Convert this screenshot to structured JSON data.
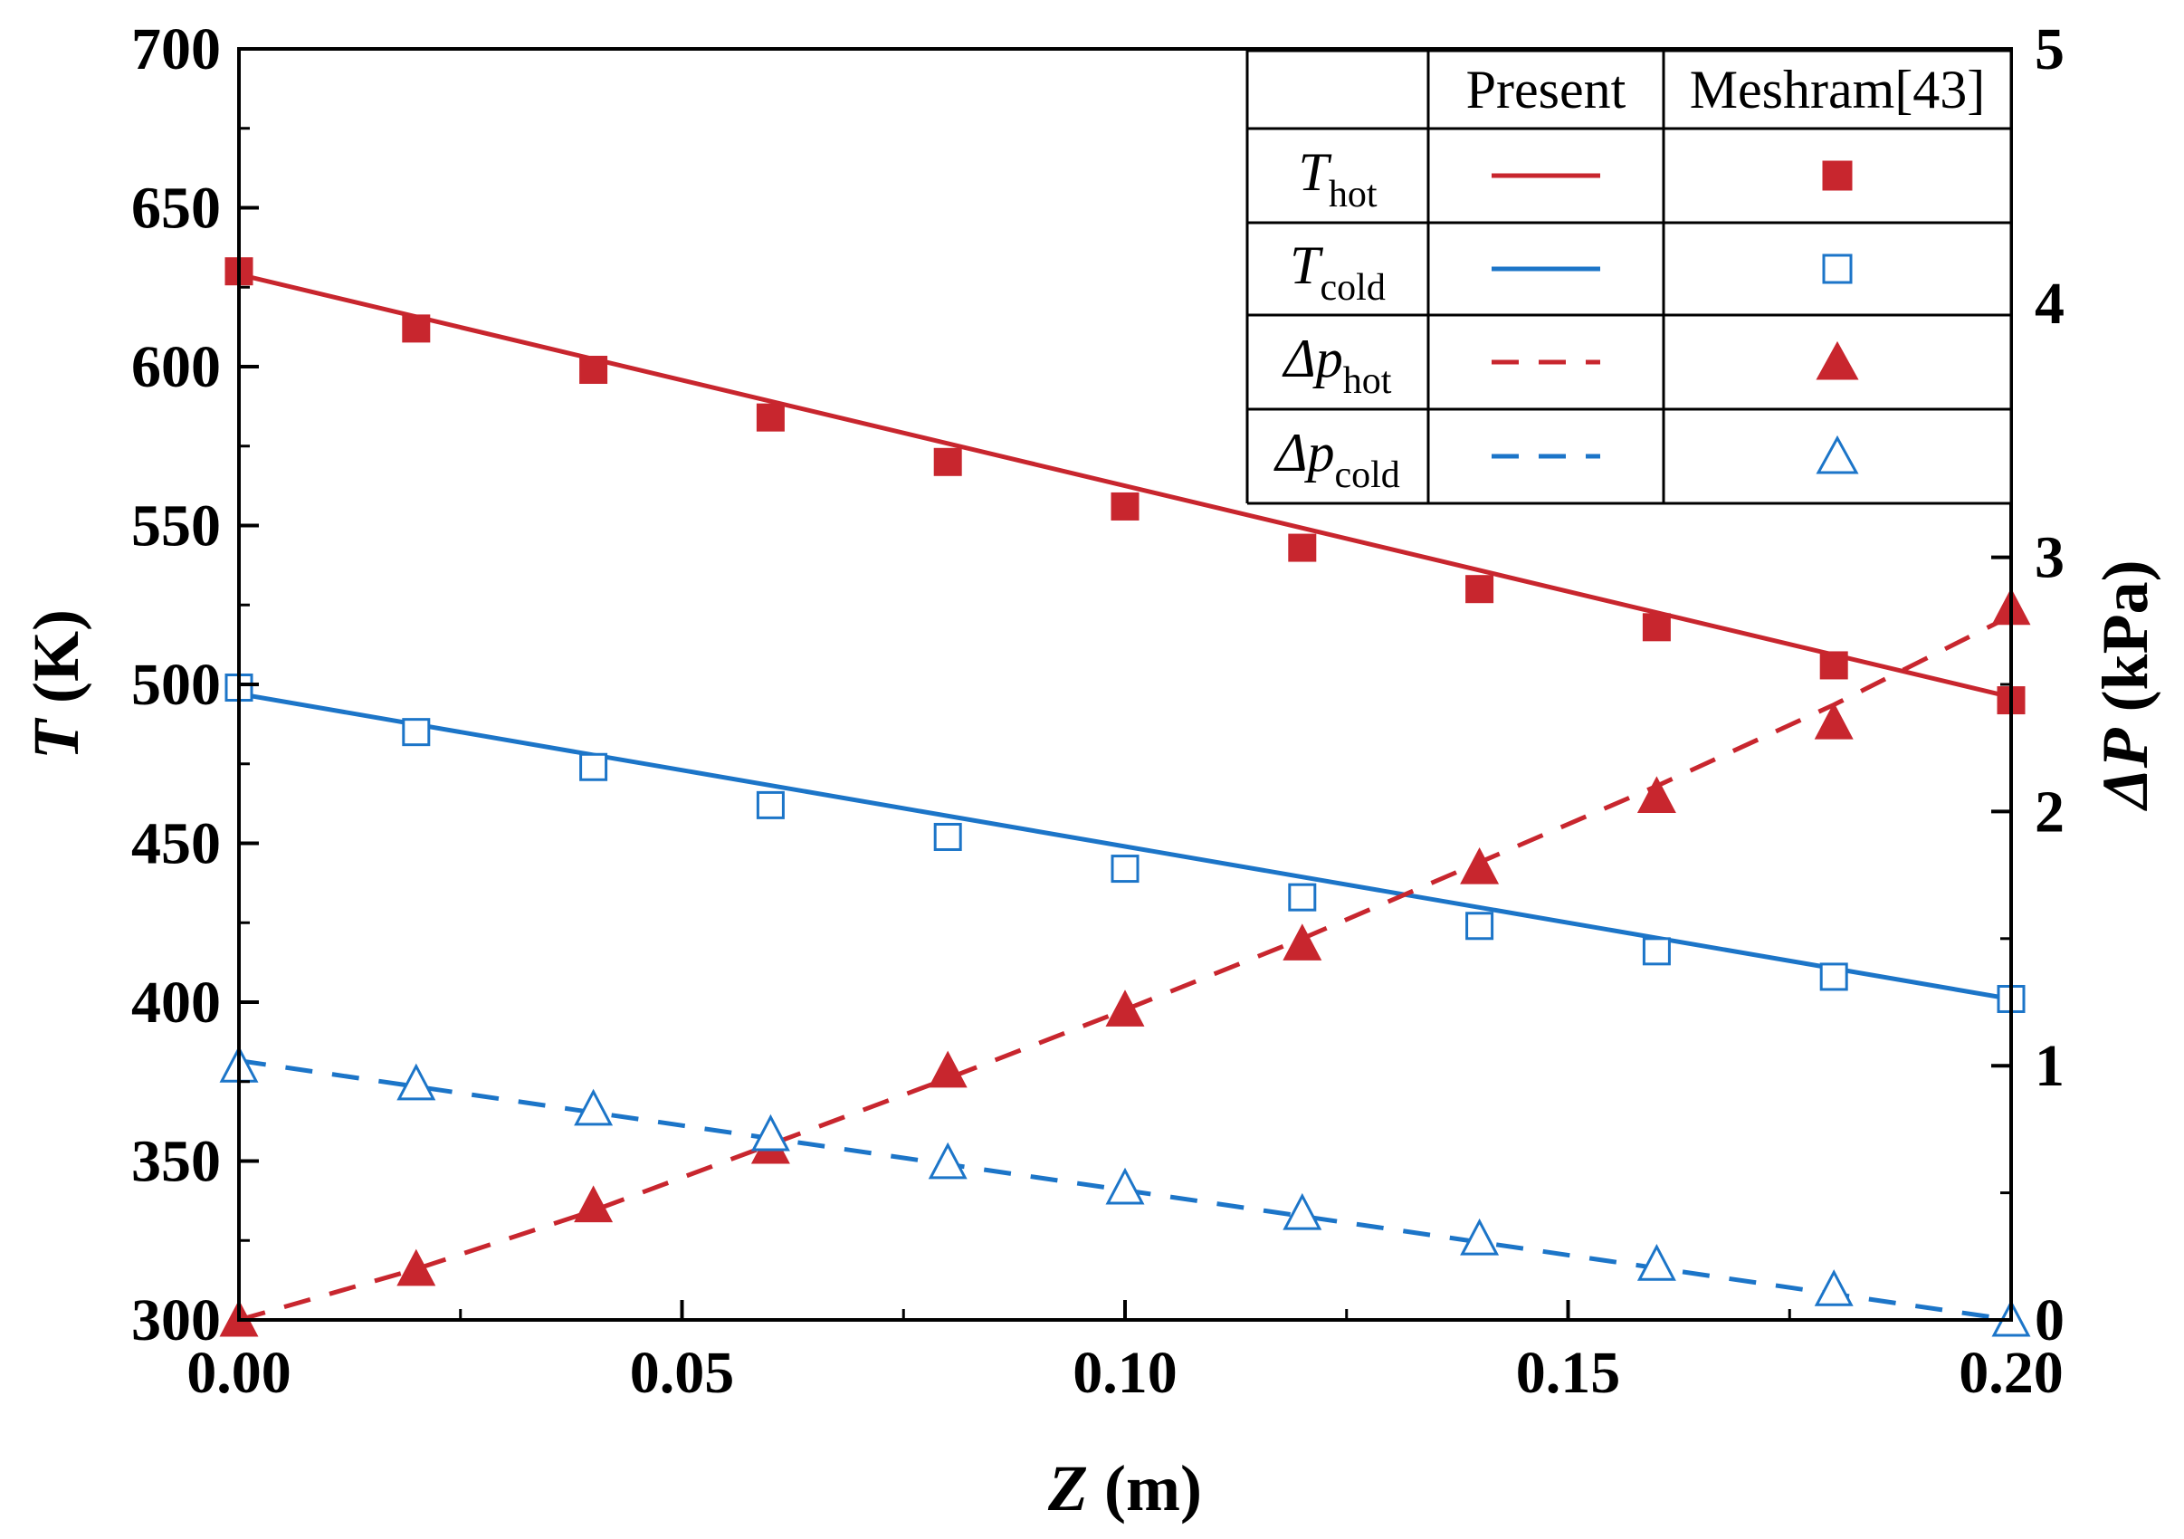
{
  "chart_data": {
    "type": "line",
    "x_axis": {
      "label": "Z (m)",
      "label_var": "Z",
      "label_unit": "(m)",
      "range": [
        0.0,
        0.2
      ],
      "ticks": [
        0.0,
        0.05,
        0.1,
        0.15,
        0.2
      ],
      "tick_labels": [
        "0.00",
        "0.05",
        "0.10",
        "0.15",
        "0.20"
      ]
    },
    "y_axis_left": {
      "label": "T (K)",
      "label_var": "T",
      "label_unit": "(K)",
      "range": [
        300,
        700
      ],
      "ticks": [
        300,
        350,
        400,
        450,
        500,
        550,
        600,
        650,
        700
      ],
      "tick_labels": [
        "300",
        "350",
        "400",
        "450",
        "500",
        "550",
        "600",
        "650",
        "700"
      ]
    },
    "y_axis_right": {
      "label": "ΔP (kPa)",
      "label_var": "ΔP",
      "label_unit": "(kPa)",
      "range": [
        0,
        5
      ],
      "ticks": [
        0,
        1,
        2,
        3,
        4,
        5
      ],
      "tick_labels": [
        "0",
        "1",
        "2",
        "3",
        "4",
        "5"
      ]
    },
    "legend": {
      "placement": "top-right",
      "header": [
        "Present",
        "Meshram[43]"
      ],
      "rows": [
        {
          "symbol": "T",
          "sub": "hot"
        },
        {
          "symbol": "T",
          "sub": "cold"
        },
        {
          "symbol": "Δp",
          "sub": "hot"
        },
        {
          "symbol": "Δp",
          "sub": "cold"
        }
      ]
    },
    "series": [
      {
        "name": "T_hot Present",
        "axis": "left",
        "color": "#c8262e",
        "style": "solid",
        "kind": "line",
        "x": [
          0.0,
          0.2
        ],
        "y": [
          629,
          496
        ]
      },
      {
        "name": "T_cold Present",
        "axis": "left",
        "color": "#1c75c8",
        "style": "solid",
        "kind": "line",
        "x": [
          0.0,
          0.2
        ],
        "y": [
          497,
          401
        ]
      },
      {
        "name": "Δp_hot Present",
        "axis": "right",
        "color": "#c8262e",
        "style": "dashed",
        "kind": "line",
        "x": [
          0.0,
          0.02,
          0.04,
          0.06,
          0.08,
          0.1,
          0.12,
          0.14,
          0.16,
          0.18,
          0.2
        ],
        "y": [
          0.0,
          0.2,
          0.43,
          0.69,
          0.95,
          1.22,
          1.5,
          1.8,
          2.1,
          2.42,
          2.77
        ]
      },
      {
        "name": "Δp_cold Present",
        "axis": "right",
        "color": "#1c75c8",
        "style": "dashed",
        "kind": "line",
        "x": [
          0.0,
          0.2
        ],
        "y": [
          1.02,
          0.0
        ]
      },
      {
        "name": "T_hot Meshram[43]",
        "axis": "left",
        "color": "#c8262e",
        "kind": "marker",
        "marker": "filled-square",
        "x": [
          0.0,
          0.02,
          0.04,
          0.06,
          0.08,
          0.1,
          0.12,
          0.14,
          0.16,
          0.18,
          0.2
        ],
        "y": [
          630,
          612,
          599,
          584,
          570,
          556,
          543,
          530,
          518,
          506,
          495
        ]
      },
      {
        "name": "T_cold Meshram[43]",
        "axis": "left",
        "color": "#1c75c8",
        "kind": "marker",
        "marker": "open-square",
        "x": [
          0.0,
          0.02,
          0.04,
          0.06,
          0.08,
          0.1,
          0.12,
          0.14,
          0.16,
          0.18,
          0.2
        ],
        "y": [
          499,
          485,
          474,
          462,
          452,
          442,
          433,
          424,
          416,
          408,
          401
        ]
      },
      {
        "name": "Δp_hot Meshram[43]",
        "axis": "right",
        "color": "#c8262e",
        "kind": "marker",
        "marker": "filled-triangle",
        "x": [
          0.0,
          0.02,
          0.04,
          0.06,
          0.08,
          0.1,
          0.12,
          0.14,
          0.16,
          0.18,
          0.2
        ],
        "y": [
          0.0,
          0.2,
          0.45,
          0.68,
          0.98,
          1.22,
          1.48,
          1.78,
          2.06,
          2.35,
          2.8
        ]
      },
      {
        "name": "Δp_cold Meshram[43]",
        "axis": "right",
        "color": "#1c75c8",
        "kind": "marker",
        "marker": "open-triangle",
        "x": [
          0.0,
          0.02,
          0.04,
          0.06,
          0.08,
          0.1,
          0.12,
          0.14,
          0.16,
          0.18,
          0.2
        ],
        "y": [
          1.0,
          0.93,
          0.83,
          0.73,
          0.62,
          0.52,
          0.42,
          0.32,
          0.22,
          0.12,
          0.0
        ]
      }
    ]
  }
}
